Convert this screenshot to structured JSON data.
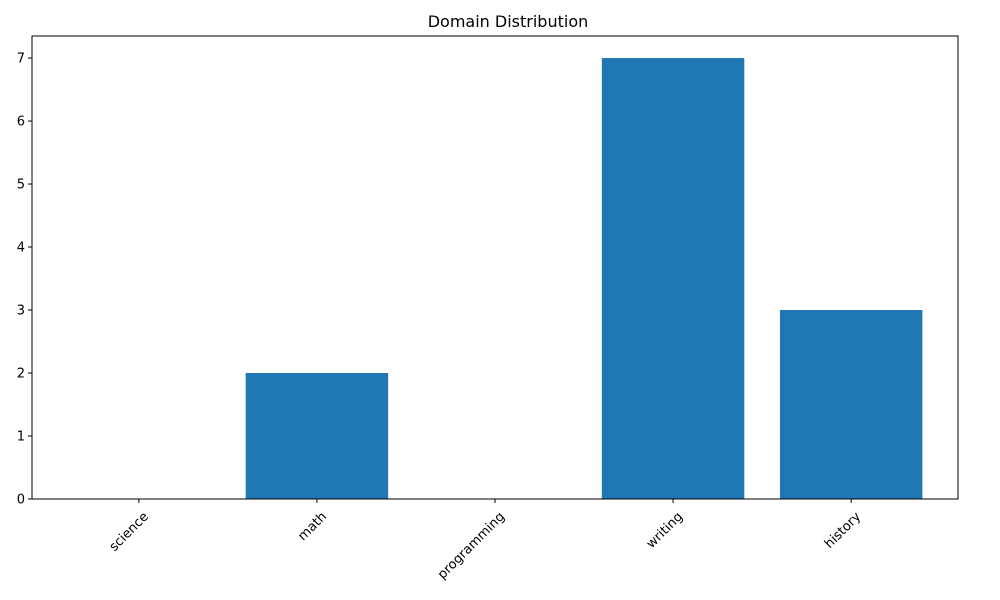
{
  "chart_data": {
    "type": "bar",
    "title": "Domain Distribution",
    "xlabel": "",
    "ylabel": "",
    "categories": [
      "science",
      "math",
      "programming",
      "writing",
      "history"
    ],
    "values": [
      0,
      2,
      0,
      7,
      3
    ],
    "ylim": [
      0,
      7.35
    ],
    "yticks": [
      0,
      1,
      2,
      3,
      4,
      5,
      6,
      7
    ],
    "xtick_rotation_deg": 45,
    "grid": false,
    "legend": "none",
    "bar_color": "#1f77b4",
    "axis_color": "#000000"
  }
}
